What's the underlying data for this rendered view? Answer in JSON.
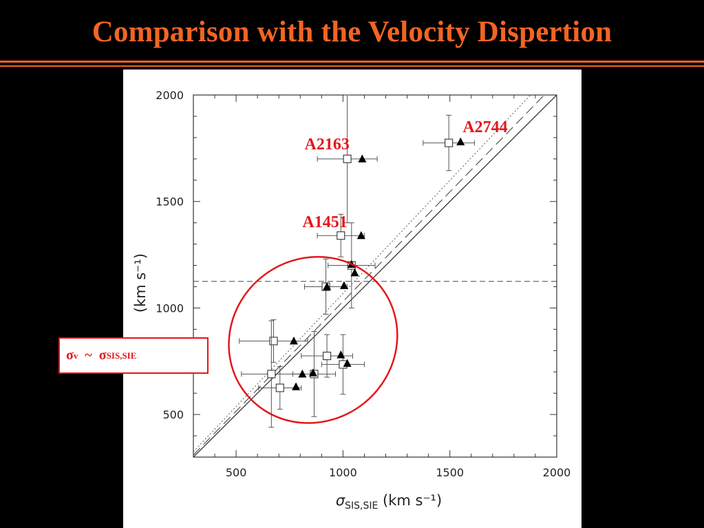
{
  "slide": {
    "title": "Comparison with the Velocity Dispertion"
  },
  "annotation": {
    "sigma": "σ",
    "left_sub": "v",
    "tilde": "~",
    "right_sub": "SIS,SIE",
    "ellipse_color": "#e4161b"
  },
  "colors": {
    "accent": "#f26522",
    "label_red": "#e4161b",
    "background": "#000000"
  },
  "chart_data": {
    "type": "scatter",
    "x_axis": {
      "label_symbol": "σ",
      "label_sub": "SIS,SIE",
      "label_units": "(km  s⁻¹)",
      "range": [
        300,
        2000
      ],
      "ticks": [
        "500",
        "1000",
        "1500",
        "2000"
      ]
    },
    "y_axis": {
      "label_units": "(km  s⁻¹)",
      "range": [
        300,
        2000
      ],
      "ticks": [
        "500",
        "1000",
        "1500",
        "2000"
      ]
    },
    "horizontal_dashed_line": 1125,
    "reference_lines": [
      "solid 1:1",
      "long-dashed",
      "dotted"
    ],
    "series": [
      {
        "marker": "open-square",
        "points": [
          {
            "x": 1495,
            "y": 1775,
            "xerr": 120,
            "yerr": 130
          },
          {
            "x": 1020,
            "y": 1700,
            "xerr": 140,
            "yerr": 300
          },
          {
            "x": 990,
            "y": 1340,
            "xerr": 110,
            "yerr": 100
          },
          {
            "x": 1040,
            "y": 1200,
            "xerr": 110,
            "yerr": 200
          },
          {
            "x": 920,
            "y": 1100,
            "xerr": 100,
            "yerr": 130
          },
          {
            "x": 675,
            "y": 845,
            "xerr": 160,
            "yerr": 100
          },
          {
            "x": 925,
            "y": 775,
            "xerr": 120,
            "yerr": 100
          },
          {
            "x": 1000,
            "y": 735,
            "xerr": 100,
            "yerr": 140
          },
          {
            "x": 665,
            "y": 690,
            "xerr": 140,
            "yerr": 250
          },
          {
            "x": 865,
            "y": 690,
            "xerr": 100,
            "yerr": 200
          },
          {
            "x": 705,
            "y": 625,
            "xerr": 100,
            "yerr": 100
          }
        ]
      },
      {
        "marker": "filled-triangle",
        "points": [
          {
            "x": 1550,
            "y": 1780
          },
          {
            "x": 1090,
            "y": 1700
          },
          {
            "x": 1085,
            "y": 1340
          },
          {
            "x": 1040,
            "y": 1205
          },
          {
            "x": 1055,
            "y": 1165
          },
          {
            "x": 925,
            "y": 1100
          },
          {
            "x": 1005,
            "y": 1105
          },
          {
            "x": 770,
            "y": 845
          },
          {
            "x": 990,
            "y": 780
          },
          {
            "x": 1020,
            "y": 740
          },
          {
            "x": 810,
            "y": 690
          },
          {
            "x": 860,
            "y": 695
          },
          {
            "x": 780,
            "y": 630
          }
        ]
      }
    ],
    "annotations": [
      {
        "text": "A2744",
        "x": 1560,
        "y": 1825
      },
      {
        "text": "A2163",
        "x": 820,
        "y": 1745
      },
      {
        "text": "A1451",
        "x": 810,
        "y": 1380
      }
    ]
  }
}
